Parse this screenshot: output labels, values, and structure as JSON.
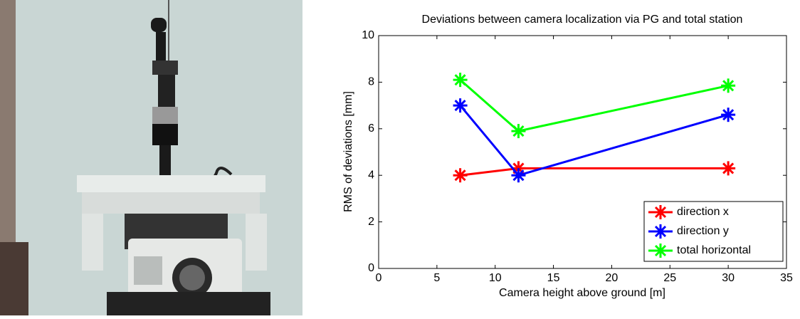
{
  "chart_data": {
    "type": "line",
    "title": "Deviations between camera localization via PG and total station",
    "x_label": "Camera height above ground [m]",
    "y_label": "RMS of deviations  [mm]",
    "x": [
      7,
      12,
      30
    ],
    "series": [
      {
        "name": "direction x",
        "color": "#ff0000",
        "values": [
          4,
          4.3,
          4.3
        ]
      },
      {
        "name": "direction y",
        "color": "#0000ff",
        "values": [
          7,
          4,
          6.6
        ]
      },
      {
        "name": "total horizontal",
        "color": "#00ff00",
        "values": [
          8.1,
          5.9,
          7.85
        ]
      }
    ],
    "xlim": [
      0,
      35
    ],
    "xticks": [
      0,
      5,
      10,
      15,
      20,
      25,
      30,
      35
    ],
    "ylim": [
      0,
      10
    ],
    "yticks": [
      0,
      2,
      4,
      6,
      8,
      10
    ],
    "grid": false,
    "legend": "lower right"
  }
}
